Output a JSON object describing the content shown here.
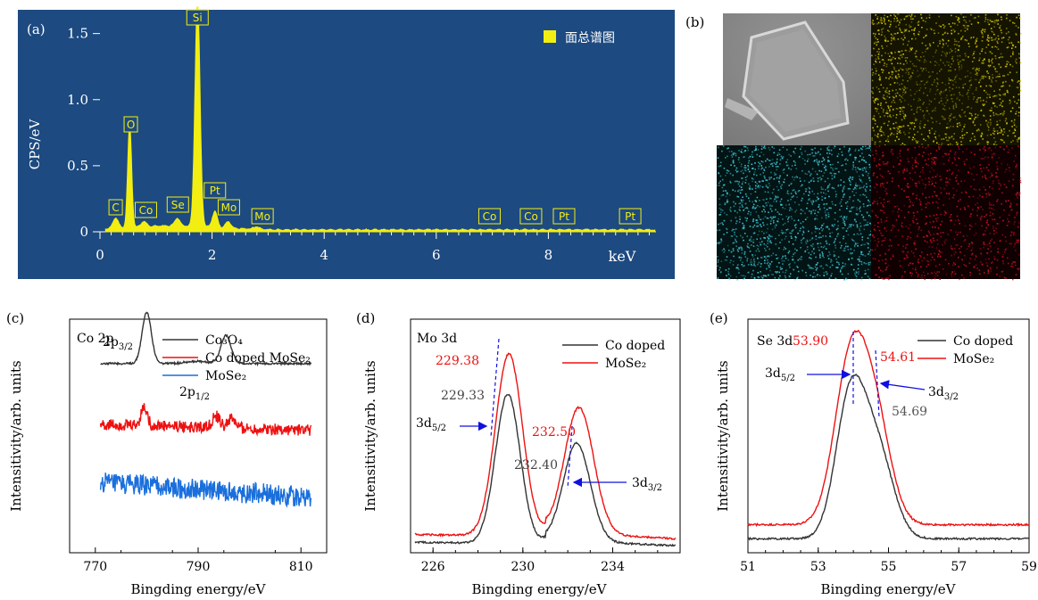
{
  "panels": {
    "a": "(a)",
    "b": "(b)",
    "c": "(c)",
    "d": "(d)",
    "e": "(e)"
  },
  "colors": {
    "eds_bg": "#1d4a80",
    "eds_spectrum": "#f2ee12",
    "black": "#333333",
    "red": "#ee1111",
    "blue": "#1a6fdc",
    "marker_blue": "#1010e0",
    "map_yellow": "#d6c800",
    "map_cyan": "#40c8d8",
    "map_red": "#cc1020"
  },
  "chart_data": [
    {
      "id": "a",
      "type": "line",
      "ylabel": "CPS/eV",
      "xlabel": "keV",
      "xlim": [
        0,
        10
      ],
      "ylim": [
        0,
        1.7
      ],
      "xticks": [
        "0",
        "2",
        "4",
        "6",
        "8"
      ],
      "xtick_values": [
        0,
        2,
        4,
        6,
        8
      ],
      "yticks": [
        "0",
        "0.5",
        "1.0",
        "1.5"
      ],
      "ytick_values": [
        0,
        0.5,
        1.0,
        1.5
      ],
      "legend": "面总谱图",
      "peaks": [
        {
          "element": "C",
          "x": 0.28,
          "y": 0.08
        },
        {
          "element": "O",
          "x": 0.53,
          "y": 0.78
        },
        {
          "element": "Co",
          "x": 0.78,
          "y": 0.04
        },
        {
          "element": "Se",
          "x": 1.38,
          "y": 0.06
        },
        {
          "element": "Si",
          "x": 1.74,
          "y": 1.72
        },
        {
          "element": "Pt",
          "x": 2.05,
          "y": 0.12
        },
        {
          "element": "Mo",
          "x": 2.29,
          "y": 0.05
        },
        {
          "element": "Mo",
          "x": 2.79,
          "y": 0.02
        },
        {
          "element": "Co",
          "x": 6.93,
          "y": 0.0
        },
        {
          "element": "Co",
          "x": 7.65,
          "y": 0.0
        },
        {
          "element": "Pt",
          "x": 8.3,
          "y": 0.0
        },
        {
          "element": "Pt",
          "x": 9.44,
          "y": 0.0
        }
      ]
    },
    {
      "id": "c",
      "type": "line",
      "title": "Co 2p",
      "xlabel": "Bingding energy/eV",
      "ylabel": "Intensitivity/arb. units",
      "xlim": [
        765,
        815
      ],
      "xticks": [
        "770",
        "790",
        "810"
      ],
      "xtick_values": [
        770,
        790,
        810
      ],
      "annotations": {
        "p32_main": "2p",
        "p32_sub": "3/2",
        "p12_main": "2p",
        "p12_sub": "1/2"
      },
      "series": [
        {
          "name": "Co₃O₄",
          "color_key": "black",
          "baseline": 0.81,
          "peaks": [
            {
              "x": 780.0,
              "h": 0.22,
              "w": 0.9
            },
            {
              "x": 795.4,
              "h": 0.12,
              "w": 1.0
            },
            {
              "x": 789.5,
              "h": 0.01,
              "w": 2.0
            }
          ],
          "noise": 0.004
        },
        {
          "name": "Co doped MoSe₂",
          "color_key": "red",
          "baseline": 0.55,
          "slope": -0.1,
          "peaks": [
            {
              "x": 779.5,
              "h": 0.08,
              "w": 0.6
            },
            {
              "x": 793.5,
              "h": 0.05,
              "w": 0.7
            },
            {
              "x": 796.5,
              "h": 0.04,
              "w": 0.7
            }
          ],
          "noise": 0.025
        },
        {
          "name": "MoSe₂",
          "color_key": "blue",
          "baseline": 0.3,
          "slope": -0.25,
          "peaks": [],
          "noise": 0.045
        }
      ]
    },
    {
      "id": "d",
      "type": "line",
      "title": "Mo 3d",
      "xlabel": "Bingding energy/eV",
      "ylabel": "Intensitivity/arb. units",
      "xlim": [
        225,
        237
      ],
      "xticks": [
        "226",
        "230",
        "234"
      ],
      "xtick_values": [
        226,
        230,
        234
      ],
      "labels": {
        "black_peak1": "229.33",
        "red_peak1": "229.38",
        "black_peak2": "232.40",
        "red_peak2": "232.50",
        "d52_main": "3d",
        "d52_sub": "5/2",
        "d32_main": "3d",
        "d32_sub": "3/2"
      },
      "series": [
        {
          "name": "Co doped",
          "color_key": "black",
          "baseline": 0.03,
          "peaks": [
            {
              "x": 229.33,
              "h": 0.64,
              "w": 0.55
            },
            {
              "x": 232.4,
              "h": 0.42,
              "w": 0.6
            }
          ],
          "tail": 0.05
        },
        {
          "name": "MoSe₂",
          "color_key": "red",
          "baseline": 0.06,
          "peaks": [
            {
              "x": 229.38,
              "h": 0.78,
              "w": 0.6
            },
            {
              "x": 232.5,
              "h": 0.54,
              "w": 0.65
            }
          ],
          "tail": 0.06
        }
      ]
    },
    {
      "id": "e",
      "type": "line",
      "title": "Se 3d",
      "xlabel": "Bingding energy/eV",
      "ylabel": "Intensitivity/arb. units",
      "xlim": [
        51,
        59
      ],
      "xticks": [
        "51",
        "53",
        "55",
        "57",
        "59"
      ],
      "xtick_values": [
        51,
        53,
        55,
        57,
        59
      ],
      "labels": {
        "red_peak1": "53.90",
        "red_peak2": "54.61",
        "black_peak2": "54.69",
        "d52_main": "3d",
        "d52_sub": "5/2",
        "d32_main": "3d",
        "d32_sub": "3/2"
      },
      "series": [
        {
          "name": "Co doped",
          "color_key": "black",
          "baseline": 0.06,
          "peaks": [
            {
              "x": 53.92,
              "h": 0.6,
              "w": 0.42
            },
            {
              "x": 54.69,
              "h": 0.36,
              "w": 0.45
            }
          ]
        },
        {
          "name": "MoSe₂",
          "color_key": "red",
          "baseline": 0.12,
          "peaks": [
            {
              "x": 53.9,
              "h": 0.66,
              "w": 0.45
            },
            {
              "x": 54.61,
              "h": 0.44,
              "w": 0.45
            }
          ]
        }
      ]
    }
  ]
}
